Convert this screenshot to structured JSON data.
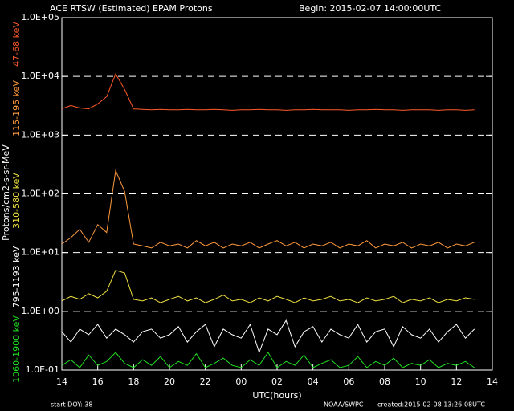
{
  "chart_data": {
    "type": "line",
    "title": "ACE RTSW (Estimated) EPAM Protons",
    "subtitle": "Begin: 2015-02-07 14:00:00UTC",
    "y_label": "Protons/cm2-s-sr-MeV",
    "x_label": "UTC(hours)",
    "footer": [
      "start DOY:   38",
      "NOAA/SWPC",
      "created:2015-02-08 13:26:08UTC"
    ],
    "log_scale_y": true,
    "grid": true,
    "x": [
      0,
      0.5,
      1,
      1.5,
      2,
      2.5,
      3,
      3.5,
      4,
      4.5,
      5,
      5.5,
      6,
      6.5,
      7,
      7.5,
      8,
      8.5,
      9,
      9.5,
      10,
      10.5,
      11,
      11.5,
      12,
      12.5,
      13,
      13.5,
      14,
      14.5,
      15,
      15.5,
      16,
      16.5,
      17,
      17.5,
      18,
      18.5,
      19,
      19.5,
      20,
      20.5,
      21,
      21.5,
      22,
      22.5,
      23
    ],
    "xlim": [
      0,
      24
    ],
    "xticks": [
      {
        "value": 0,
        "label": "14"
      },
      {
        "value": 2,
        "label": "16"
      },
      {
        "value": 4,
        "label": "18"
      },
      {
        "value": 6,
        "label": "20"
      },
      {
        "value": 8,
        "label": "22"
      },
      {
        "value": 10,
        "label": "00"
      },
      {
        "value": 12,
        "label": "02"
      },
      {
        "value": 14,
        "label": "04"
      },
      {
        "value": 16,
        "label": "06"
      },
      {
        "value": 18,
        "label": "08"
      },
      {
        "value": 20,
        "label": "10"
      },
      {
        "value": 22,
        "label": "12"
      },
      {
        "value": 24,
        "label": "14"
      }
    ],
    "ylim": [
      0.1,
      100000
    ],
    "yticks": [
      {
        "value": 0.1,
        "label": "1.0E-01"
      },
      {
        "value": 1,
        "label": "1.0E+00"
      },
      {
        "value": 10,
        "label": "1.0E+01"
      },
      {
        "value": 100,
        "label": "1.0E+02"
      },
      {
        "value": 1000,
        "label": "1.0E+03"
      },
      {
        "value": 10000,
        "label": "1.0E+04"
      },
      {
        "value": 100000,
        "label": "1.0E+05"
      }
    ],
    "series": [
      {
        "name": "47-68 keV",
        "color": "#ff5a28",
        "values": [
          2800,
          3200,
          2900,
          2800,
          3400,
          4500,
          11000,
          6000,
          2800,
          2750,
          2700,
          2750,
          2700,
          2700,
          2750,
          2700,
          2700,
          2750,
          2700,
          2650,
          2700,
          2700,
          2750,
          2700,
          2700,
          2650,
          2700,
          2700,
          2750,
          2700,
          2700,
          2700,
          2650,
          2700,
          2700,
          2750,
          2700,
          2700,
          2650,
          2700,
          2700,
          2700,
          2650,
          2700,
          2700,
          2650,
          2700
        ]
      },
      {
        "name": "115-195 keV",
        "color": "#ff9a3c",
        "values": [
          14,
          18,
          25,
          15,
          30,
          22,
          250,
          110,
          14,
          13,
          12,
          15,
          13,
          14,
          12,
          16,
          13,
          15,
          12,
          14,
          13,
          15,
          12,
          14,
          16,
          13,
          15,
          12,
          14,
          13,
          15,
          12,
          14,
          13,
          16,
          12,
          14,
          13,
          15,
          12,
          14,
          13,
          15,
          12,
          14,
          13,
          15
        ]
      },
      {
        "name": "310-580 keV",
        "color": "#f0e040",
        "values": [
          1.5,
          1.8,
          1.6,
          2.0,
          1.7,
          2.2,
          5.0,
          4.5,
          1.6,
          1.5,
          1.7,
          1.4,
          1.6,
          1.8,
          1.5,
          1.7,
          1.4,
          1.6,
          1.9,
          1.5,
          1.6,
          1.4,
          1.7,
          1.5,
          1.8,
          1.6,
          1.4,
          1.7,
          1.5,
          1.6,
          1.8,
          1.5,
          1.6,
          1.4,
          1.7,
          1.5,
          1.6,
          1.8,
          1.4,
          1.6,
          1.5,
          1.7,
          1.4,
          1.6,
          1.5,
          1.7,
          1.6
        ]
      },
      {
        "name": "795-1193 keV",
        "color": "#ffffff",
        "values": [
          0.45,
          0.3,
          0.5,
          0.4,
          0.6,
          0.35,
          0.5,
          0.4,
          0.3,
          0.45,
          0.5,
          0.35,
          0.4,
          0.55,
          0.3,
          0.45,
          0.6,
          0.25,
          0.5,
          0.4,
          0.35,
          0.6,
          0.2,
          0.5,
          0.4,
          0.7,
          0.25,
          0.45,
          0.55,
          0.3,
          0.5,
          0.4,
          0.35,
          0.6,
          0.3,
          0.45,
          0.5,
          0.25,
          0.55,
          0.4,
          0.35,
          0.5,
          0.3,
          0.45,
          0.6,
          0.35,
          0.5
        ]
      },
      {
        "name": "1060-1900 keV",
        "color": "#20e020",
        "values": [
          0.12,
          0.15,
          0.11,
          0.18,
          0.12,
          0.14,
          0.2,
          0.13,
          0.11,
          0.15,
          0.12,
          0.17,
          0.11,
          0.14,
          0.12,
          0.19,
          0.11,
          0.13,
          0.16,
          0.12,
          0.11,
          0.15,
          0.12,
          0.2,
          0.11,
          0.14,
          0.12,
          0.18,
          0.11,
          0.13,
          0.15,
          0.11,
          0.12,
          0.17,
          0.11,
          0.14,
          0.12,
          0.16,
          0.11,
          0.13,
          0.12,
          0.15,
          0.11,
          0.13,
          0.12,
          0.14,
          0.11
        ]
      }
    ]
  }
}
